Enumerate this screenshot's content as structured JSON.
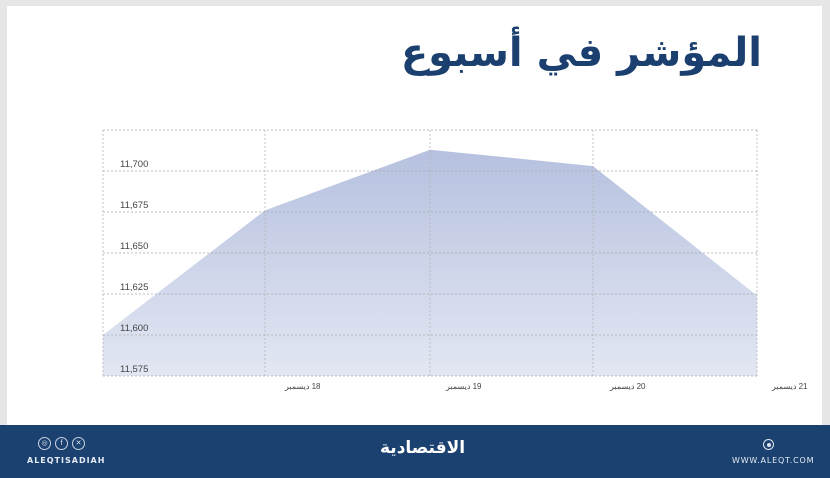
{
  "title": "المؤشر في أسبوع",
  "chart_data": {
    "type": "area",
    "title": "المؤشر في أسبوع",
    "xlabel": "",
    "ylabel": "",
    "categories": [
      "",
      "18 ديسمبر",
      "19 ديسمبر",
      "20 ديسمبر",
      "21 ديسمبر"
    ],
    "values": [
      11600,
      11676,
      11713,
      11703,
      11624
    ],
    "ylim": [
      11575,
      11725
    ],
    "yticks": [
      11700,
      11675,
      11650,
      11625,
      11600,
      11575
    ],
    "ytick_labels": [
      "11,700",
      "11,675",
      "11,650",
      "11,625",
      "11,600",
      "11,575"
    ],
    "grid": true,
    "legend": null,
    "fill_color": "#b9c3e0"
  },
  "axis": {
    "y_labels": [
      "11,700",
      "11,675",
      "11,650",
      "11,625",
      "11,600",
      "11,575"
    ],
    "x_labels": [
      "18 ديسمبر",
      "19 ديسمبر",
      "20 ديسمبر",
      "21 ديسمبر"
    ]
  },
  "footer": {
    "social_icons": [
      "instagram-icon",
      "facebook-icon",
      "x-icon"
    ],
    "handle": "ALEQTISADIAH",
    "logo": "الاقتصادية",
    "website": "WWW.ALEQT.COM",
    "background": "#1b4170"
  }
}
